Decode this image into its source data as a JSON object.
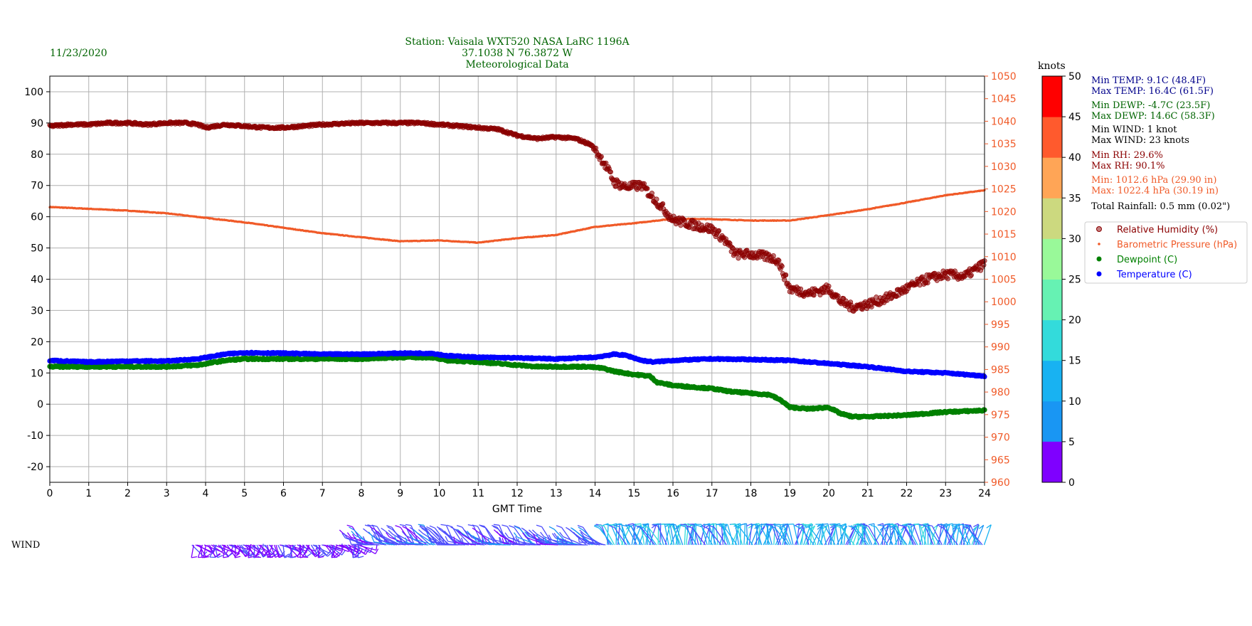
{
  "header": {
    "date": "11/23/2020",
    "title_lines": [
      "Station:  Vaisala WXT520  NASA LaRC 1196A",
      "37.1038 N 76.3872 W",
      "Meteorological Data"
    ]
  },
  "axes": {
    "xlabel": "GMT Time",
    "x_ticks": [
      "0",
      "1",
      "2",
      "3",
      "4",
      "5",
      "6",
      "7",
      "8",
      "9",
      "10",
      "11",
      "12",
      "13",
      "14",
      "15",
      "16",
      "17",
      "18",
      "19",
      "20",
      "21",
      "22",
      "23",
      "24"
    ],
    "left_ticks": [
      "-20",
      "-10",
      "0",
      "10",
      "20",
      "30",
      "40",
      "50",
      "60",
      "70",
      "80",
      "90",
      "100"
    ],
    "right_ticks": [
      "960",
      "965",
      "970",
      "975",
      "980",
      "985",
      "990",
      "995",
      "1000",
      "1005",
      "1010",
      "1015",
      "1020",
      "1025",
      "1030",
      "1035",
      "1040",
      "1045",
      "1050"
    ],
    "wind_label": "WIND"
  },
  "colorbar": {
    "title": "knots",
    "ticks": [
      "0",
      "5",
      "10",
      "15",
      "20",
      "25",
      "30",
      "35",
      "40",
      "45",
      "50"
    ],
    "colors": [
      "#7f00ff",
      "#4d4dfc",
      "#1996f3",
      "#18b2f2",
      "#33dbdb",
      "#66f2b3",
      "#99f999",
      "#ccd97f",
      "#ffa556",
      "#ff5a2d",
      "#ff0000"
    ]
  },
  "stats": {
    "min_temp": "Min TEMP: 9.1C (48.4F)",
    "max_temp": "Max TEMP: 16.4C (61.5F)",
    "min_dewp": "Min DEWP: -4.7C (23.5F)",
    "max_dewp": "Max DEWP: 14.6C (58.3F)",
    "min_wind": "Min WIND: 1 knot",
    "max_wind": "Max WIND: 23 knots",
    "min_rh": "Min RH: 29.6%",
    "max_rh": "Max RH: 90.1%",
    "min_press": "Min: 1012.6 hPa (29.90 in)",
    "max_press": "Max: 1022.4 hPa (30.19 in)",
    "rain": "Total Rainfall: 0.5 mm (0.02\")"
  },
  "legend": {
    "placement": "right, outside plot",
    "items": [
      {
        "label": "Relative Humidity (%)",
        "color": "#8b0000"
      },
      {
        "label": "Barometric Pressure (hPa)",
        "color": "#f05a28"
      },
      {
        "label": "Dewpoint (C)",
        "color": "#008000"
      },
      {
        "label": "Temperature (C)",
        "color": "#0000ff"
      }
    ]
  },
  "colors": {
    "rh": "#8b0000",
    "pressure": "#f05a28",
    "dewpoint": "#008000",
    "temperature": "#0000ff",
    "stats_temp": "#00008b",
    "stats_dewp": "#006400",
    "stats_wind": "#000000",
    "stats_rh": "#8b0000",
    "stats_press": "#f05a28",
    "header_text": "#006400"
  },
  "chart_data": {
    "type": "scatter",
    "x_range": [
      0,
      24
    ],
    "left_ylim": [
      -25,
      105
    ],
    "right_ylim": [
      960,
      1050
    ],
    "grid": true,
    "series": [
      {
        "name": "Relative Humidity (%)",
        "axis": "left",
        "x": [
          0,
          0.5,
          1,
          1.5,
          2,
          2.5,
          3,
          3.5,
          3.8,
          4,
          4.5,
          5,
          5.5,
          6,
          6.5,
          7,
          7.5,
          8,
          8.5,
          9,
          9.5,
          10,
          10.5,
          11,
          11.5,
          12,
          12.5,
          13,
          13.5,
          13.9,
          14.2,
          14.5,
          14.8,
          15.2,
          15.5,
          15.8,
          16,
          16.5,
          17,
          17.3,
          17.6,
          18,
          18.5,
          18.7,
          19,
          19.5,
          20,
          20.3,
          20.6,
          21,
          21.5,
          22,
          22.5,
          23,
          23.5,
          24
        ],
        "y": [
          89,
          89.5,
          89.5,
          90,
          90,
          89.5,
          90,
          90,
          89.5,
          88.5,
          89.5,
          89,
          88.5,
          88.5,
          89,
          89.5,
          89.8,
          90,
          90,
          90,
          90,
          89.5,
          89,
          88.5,
          88,
          86,
          85,
          85.5,
          85,
          83,
          78,
          71,
          69.5,
          70,
          66,
          62,
          59,
          57.5,
          56,
          53,
          48,
          48,
          47,
          46,
          37,
          35.5,
          37,
          33,
          31,
          32,
          34,
          37,
          40,
          41.5,
          41,
          45
        ]
      },
      {
        "name": "Barometric Pressure (hPa)",
        "axis": "right",
        "x": [
          0,
          1,
          2,
          3,
          4,
          5,
          6,
          7,
          8,
          9,
          10,
          11,
          12,
          13,
          14,
          15,
          16,
          17,
          18,
          19,
          20,
          21,
          22,
          23,
          24
        ],
        "y": [
          1021,
          1020.6,
          1020.2,
          1019.6,
          1018.6,
          1017.6,
          1016.4,
          1015.2,
          1014.3,
          1013.4,
          1013.6,
          1013.1,
          1014.1,
          1014.8,
          1016.6,
          1017.4,
          1018.4,
          1018.3,
          1018,
          1018,
          1019.2,
          1020.5,
          1022,
          1023.6,
          1024.7
        ]
      },
      {
        "name": "Dewpoint (C)",
        "axis": "left",
        "x": [
          0,
          1,
          2,
          3,
          3.8,
          4.5,
          5,
          6,
          7,
          8,
          9,
          9.8,
          10.2,
          11,
          12,
          12.5,
          13,
          13.8,
          14.2,
          14.5,
          15,
          15.4,
          15.6,
          16,
          17,
          17.5,
          18,
          18.5,
          18.8,
          19,
          19.5,
          20,
          20.3,
          20.6,
          21,
          22,
          23,
          24
        ],
        "y": [
          12,
          12,
          12,
          12,
          12.5,
          14,
          14.5,
          14.5,
          14.5,
          14.5,
          15,
          15,
          14,
          13.5,
          12.5,
          12,
          12,
          12,
          11.5,
          10.5,
          9.5,
          9,
          7,
          6,
          5,
          4,
          3.5,
          3,
          1,
          -1,
          -1.5,
          -1,
          -3,
          -4,
          -4,
          -3.5,
          -2.5,
          -2
        ]
      },
      {
        "name": "Temperature (C)",
        "axis": "left",
        "x": [
          0,
          1,
          2,
          3,
          3.8,
          4.5,
          5,
          6,
          7,
          8,
          9,
          9.8,
          10.2,
          11,
          12,
          13,
          14,
          14.5,
          14.8,
          15.2,
          15.5,
          16,
          17,
          18,
          19,
          20,
          21,
          22,
          23,
          24
        ],
        "y": [
          14,
          13.5,
          13.8,
          13.8,
          14.5,
          16,
          16.5,
          16.3,
          16,
          16,
          16.3,
          16.3,
          15.5,
          15,
          14.8,
          14.5,
          15,
          16,
          15.6,
          14,
          13.5,
          14,
          14.5,
          14.3,
          14,
          13,
          12,
          10.5,
          10,
          9
        ]
      }
    ],
    "wind": {
      "label": "WIND",
      "x_start": 3.65,
      "x_end": 24,
      "speed_range_knots": [
        1,
        23
      ]
    }
  }
}
